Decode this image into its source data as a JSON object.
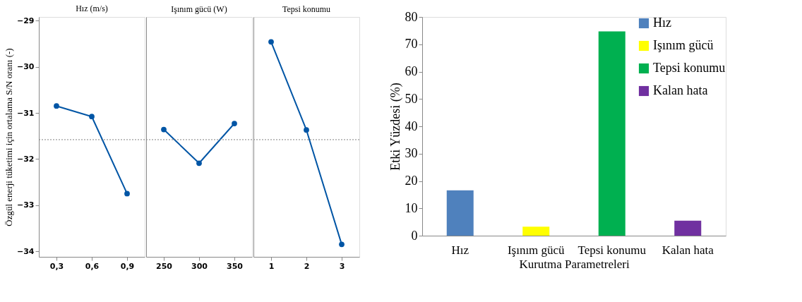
{
  "chart_data": [
    {
      "type": "line",
      "title": "Hız (m/s)",
      "ylabel": "Özgül enerji tüketimi için ortalama S/N oranı (-)",
      "categories": [
        "0,3",
        "0,6",
        "0,9"
      ],
      "series": [
        {
          "color": "#0055a5",
          "values": [
            -30.85,
            -31.08,
            -32.75
          ]
        }
      ],
      "ylim": [
        -34.12,
        -28.92
      ],
      "yticks": [
        -29,
        -30,
        -31,
        -32,
        -33,
        -34
      ],
      "ref_lines": [
        {
          "axis": "y",
          "value": -31.58,
          "color": "#808080",
          "line_style": "dotted"
        }
      ],
      "marker": "circle",
      "grid": false,
      "legend": false
    },
    {
      "type": "line",
      "title": "Işınım gücü (W)",
      "categories": [
        "250",
        "300",
        "350"
      ],
      "series": [
        {
          "color": "#0055a5",
          "values": [
            -31.36,
            -32.09,
            -31.23
          ]
        }
      ],
      "ylim": [
        -34.12,
        -28.92
      ],
      "yticks": [
        -29,
        -30,
        -31,
        -32,
        -33,
        -34
      ],
      "tick_labels": "x",
      "ref_lines": [
        {
          "axis": "y",
          "value": -31.58,
          "color": "#808080",
          "line_style": "dotted"
        }
      ],
      "marker": "circle",
      "grid": false,
      "legend": false
    },
    {
      "type": "line",
      "title": "Tepsi konumu",
      "categories": [
        "1",
        "2",
        "3"
      ],
      "series": [
        {
          "color": "#0055a5",
          "values": [
            -29.46,
            -31.37,
            -33.85
          ]
        }
      ],
      "ylim": [
        -34.12,
        -28.92
      ],
      "yticks": [
        -29,
        -30,
        -31,
        -32,
        -33,
        -34
      ],
      "tick_labels": "x",
      "ref_lines": [
        {
          "axis": "y",
          "value": -31.58,
          "color": "#808080",
          "line_style": "dotted"
        }
      ],
      "marker": "circle",
      "grid": false,
      "legend": false
    },
    {
      "type": "bar",
      "xlabel": "Kurutma Parametreleri",
      "ylabel": "Etki Yüzdesi (%)",
      "categories": [
        "Hız",
        "Işınım gücü",
        "Tepsi konumu",
        "Kalan hata"
      ],
      "series": [
        {
          "name": "Hız",
          "color": "#4f81bd",
          "values": [
            16.6,
            null,
            null,
            null
          ]
        },
        {
          "name": "Işınım gücü",
          "color": "#ffff00",
          "values": [
            null,
            3.3,
            null,
            null
          ]
        },
        {
          "name": "Tepsi konumu",
          "color": "#00b050",
          "values": [
            null,
            null,
            74.7,
            null
          ]
        },
        {
          "name": "Kalan hata",
          "color": "#7030a0",
          "values": [
            null,
            null,
            null,
            5.5
          ]
        }
      ],
      "ylim": [
        0,
        80
      ],
      "yticks": [
        0,
        10,
        20,
        30,
        40,
        50,
        60,
        70,
        80
      ],
      "grid": false,
      "legend": "top right"
    }
  ]
}
